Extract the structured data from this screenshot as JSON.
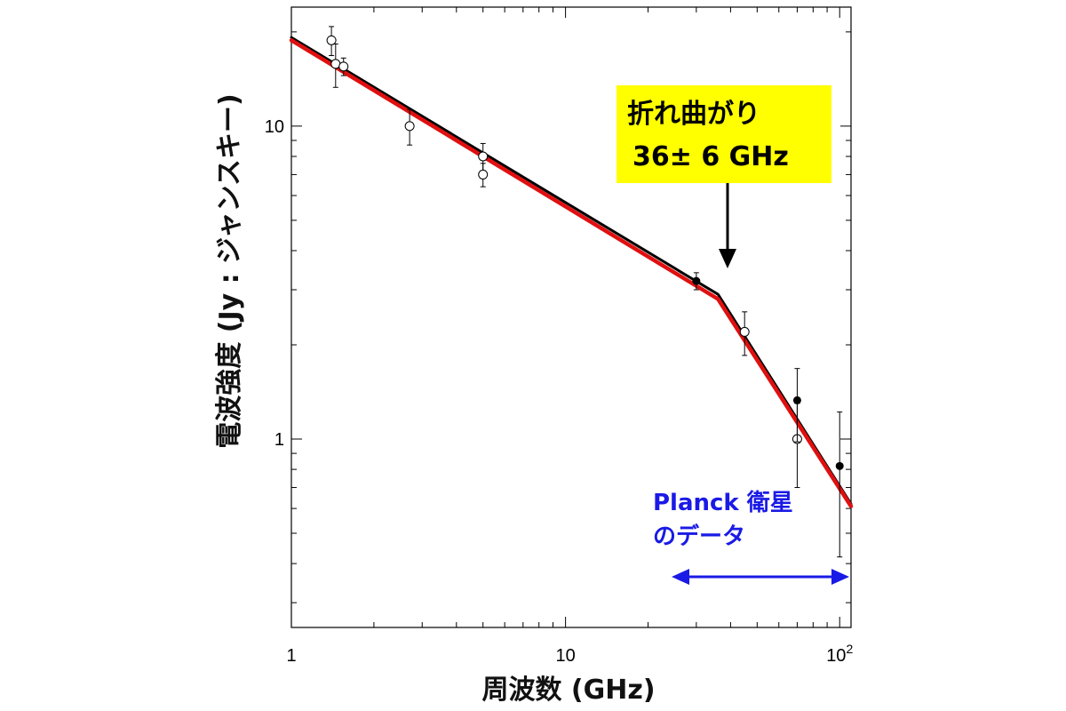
{
  "chart_data": {
    "type": "scatter",
    "xlabel": "周波数 (GHz)",
    "ylabel": "電波強度 (Jy : ジャンスキー)",
    "x_scale": "log",
    "y_scale": "log",
    "xlim": [
      1,
      110
    ],
    "ylim": [
      0.25,
      24
    ],
    "x_ticks": [
      {
        "value": 1,
        "label": "1"
      },
      {
        "value": 10,
        "label": "10"
      },
      {
        "value": 100,
        "label": "10",
        "sup": "2"
      }
    ],
    "y_ticks": [
      {
        "value": 1,
        "label": "1"
      },
      {
        "value": 10,
        "label": "10"
      }
    ],
    "series": [
      {
        "marker": "open-circle",
        "points": [
          {
            "x": 1.4,
            "y": 18.8,
            "err": 2.0
          },
          {
            "x": 1.45,
            "y": 15.8,
            "err": 2.5
          },
          {
            "x": 1.55,
            "y": 15.5,
            "err": 1.0
          },
          {
            "x": 2.7,
            "y": 10.0,
            "err": 1.3
          },
          {
            "x": 5.0,
            "y": 8.0,
            "err": 0.8
          },
          {
            "x": 5.0,
            "y": 7.0,
            "err": 0.6
          },
          {
            "x": 45,
            "y": 2.2,
            "err": 0.35
          },
          {
            "x": 70,
            "y": 1.0,
            "err": 0.3
          }
        ]
      },
      {
        "marker": "filled-circle",
        "points": [
          {
            "x": 30,
            "y": 3.2,
            "err": 0.2
          },
          {
            "x": 70,
            "y": 1.33,
            "err": 0.35
          },
          {
            "x": 100,
            "y": 0.82,
            "err": 0.4
          }
        ]
      }
    ],
    "fit_lines": [
      {
        "color": "#000000",
        "points": [
          [
            1,
            19.2
          ],
          [
            36,
            2.9
          ],
          [
            110,
            0.62
          ]
        ]
      },
      {
        "color": "#e01010",
        "points": [
          [
            1,
            18.8
          ],
          [
            36,
            2.8
          ],
          [
            110,
            0.61
          ]
        ]
      }
    ],
    "annotations": {
      "break": {
        "lines": [
          "折れ曲がり",
          "36± 6 GHz"
        ],
        "box_color": "#ffff00",
        "arrow_to_x": 40
      },
      "planck": {
        "lines": [
          "Planck 衛星",
          "のデータ"
        ],
        "color": "#1a1ae6",
        "x_range": [
          25,
          110
        ]
      }
    }
  }
}
